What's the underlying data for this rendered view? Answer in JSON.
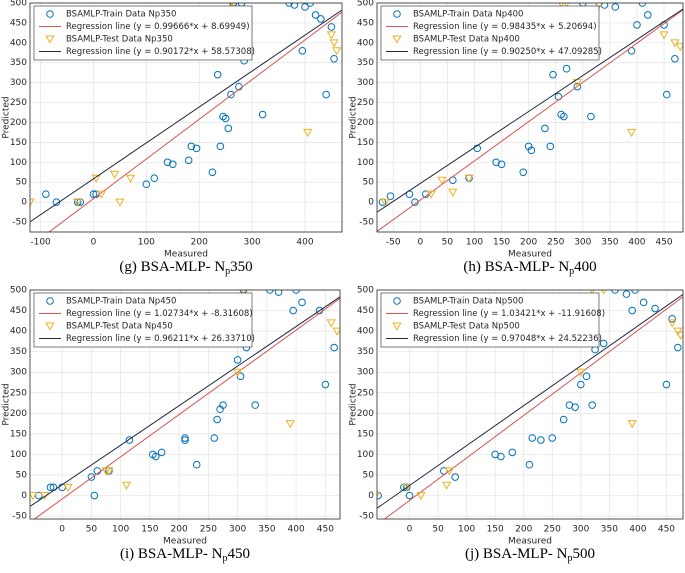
{
  "chart_data": [
    {
      "type": "scatter",
      "caption": [
        "(g) BSA-MLP- N",
        "p",
        "350"
      ],
      "xlabel": "Measured",
      "ylabel": "Predicted",
      "xlim": [
        -120,
        470
      ],
      "ylim": [
        -75,
        500
      ],
      "xticks": [
        -100,
        0,
        100,
        200,
        300,
        400
      ],
      "yticks": [
        -50,
        0,
        50,
        100,
        150,
        200,
        250,
        300,
        350,
        400,
        450,
        500
      ],
      "grid": true,
      "legend": "upper left",
      "series": [
        {
          "name": "BSAMLP-Train Data Np350",
          "color": "#0072bd",
          "marker": "circle",
          "x": [
            -90,
            -70,
            -30,
            -25,
            0,
            5,
            100,
            115,
            140,
            150,
            180,
            185,
            195,
            225,
            235,
            240,
            245,
            250,
            255,
            260,
            275,
            280,
            285,
            290,
            320,
            370,
            380,
            395,
            400,
            410,
            420,
            430,
            440,
            450,
            455,
            265
          ],
          "values": [
            20,
            0,
            0,
            0,
            20,
            20,
            45,
            60,
            100,
            95,
            105,
            140,
            135,
            75,
            320,
            140,
            215,
            210,
            185,
            270,
            290,
            500,
            355,
            370,
            220,
            500,
            495,
            380,
            490,
            500,
            470,
            460,
            270,
            440,
            360,
            500
          ]
        },
        {
          "name": "Regression line (y = 0.99666*x + 8.69949)",
          "color": "#d9534f",
          "marker": "line",
          "slope": 0.99666,
          "intercept": 8.69949
        },
        {
          "name": "BSAMLP-Test Data Np350",
          "color": "#edb120",
          "marker": "triangle",
          "x": [
            -120,
            -30,
            5,
            15,
            40,
            50,
            70,
            260,
            265,
            405,
            450,
            455,
            460
          ],
          "values": [
            0,
            0,
            60,
            20,
            70,
            0,
            60,
            500,
            500,
            175,
            420,
            400,
            380
          ]
        },
        {
          "name": "Regression line (y = 0.90172*x + 58.57308)",
          "color": "#1f2a44",
          "marker": "line",
          "slope": 0.90172,
          "intercept": 58.57308
        }
      ]
    },
    {
      "type": "scatter",
      "caption": [
        "(h) BSA-MLP- N",
        "p",
        "400"
      ],
      "xlabel": "Measured",
      "ylabel": "Predicted",
      "xlim": [
        -80,
        485
      ],
      "ylim": [
        -75,
        500
      ],
      "xticks": [
        -50,
        0,
        50,
        100,
        150,
        200,
        250,
        300,
        350,
        400,
        450
      ],
      "yticks": [
        -50,
        0,
        50,
        100,
        150,
        200,
        250,
        300,
        350,
        400,
        450,
        500
      ],
      "grid": true,
      "legend": "upper left",
      "series": [
        {
          "name": "BSAMLP-Train Data Np400",
          "color": "#0072bd",
          "marker": "circle",
          "x": [
            -70,
            -55,
            -20,
            -10,
            10,
            60,
            90,
            105,
            140,
            150,
            190,
            200,
            205,
            230,
            240,
            245,
            255,
            260,
            265,
            270,
            290,
            300,
            310,
            315,
            330,
            340,
            360,
            390,
            400,
            410,
            420,
            450,
            455,
            470
          ],
          "values": [
            0,
            15,
            20,
            0,
            20,
            55,
            60,
            135,
            100,
            95,
            75,
            140,
            130,
            185,
            140,
            320,
            265,
            220,
            215,
            335,
            290,
            500,
            370,
            215,
            500,
            495,
            490,
            380,
            445,
            500,
            470,
            445,
            270,
            360
          ]
        },
        {
          "name": "Regression line (y = 0.98435*x + 5.20694)",
          "color": "#d9534f",
          "marker": "line",
          "slope": 0.98435,
          "intercept": 5.20694
        },
        {
          "name": "BSAMLP-Test Data Np400",
          "color": "#edb120",
          "marker": "triangle",
          "x": [
            -65,
            20,
            40,
            60,
            90,
            260,
            270,
            290,
            330,
            390,
            450,
            470,
            480
          ],
          "values": [
            0,
            20,
            55,
            25,
            60,
            500,
            500,
            300,
            495,
            175,
            420,
            400,
            390
          ]
        },
        {
          "name": "Regression line (y = 0.90250*x + 47.09285)",
          "color": "#1f2a44",
          "marker": "line",
          "slope": 0.9025,
          "intercept": 47.09285
        }
      ]
    },
    {
      "type": "scatter",
      "caption": [
        "(i) BSA-MLP- N",
        "p",
        "450"
      ],
      "xlabel": "Measured",
      "ylabel": "Predicted",
      "xlim": [
        -55,
        475
      ],
      "ylim": [
        -57,
        500
      ],
      "xticks": [
        0,
        50,
        100,
        150,
        200,
        250,
        300,
        350,
        400,
        450
      ],
      "yticks": [
        -50,
        0,
        50,
        100,
        150,
        200,
        250,
        300,
        350,
        400,
        450,
        500
      ],
      "grid": true,
      "legend": "upper left",
      "series": [
        {
          "name": "BSAMLP-Train Data Np450",
          "color": "#0072bd",
          "marker": "circle",
          "x": [
            -40,
            -20,
            -15,
            0,
            50,
            55,
            60,
            80,
            115,
            155,
            160,
            170,
            210,
            210,
            230,
            260,
            265,
            270,
            275,
            300,
            305,
            310,
            315,
            330,
            355,
            370,
            395,
            400,
            410,
            440,
            450,
            465
          ],
          "values": [
            0,
            20,
            20,
            20,
            45,
            0,
            60,
            60,
            135,
            100,
            95,
            105,
            140,
            135,
            75,
            140,
            185,
            210,
            220,
            330,
            290,
            500,
            360,
            220,
            500,
            495,
            450,
            500,
            470,
            450,
            270,
            360
          ]
        },
        {
          "name": "Regression line (y = 1.02734*x + -8.31608)",
          "color": "#d9534f",
          "marker": "line",
          "slope": 1.02734,
          "intercept": -8.31608
        },
        {
          "name": "BSAMLP-Test Data Np450",
          "color": "#edb120",
          "marker": "triangle",
          "x": [
            -50,
            -30,
            10,
            75,
            80,
            110,
            300,
            310,
            390,
            460,
            470
          ],
          "values": [
            0,
            0,
            20,
            60,
            60,
            25,
            300,
            500,
            175,
            420,
            400
          ]
        },
        {
          "name": "Regression line (y = 0.96211*x + 26.33710)",
          "color": "#1f2a44",
          "marker": "line",
          "slope": 0.96211,
          "intercept": 26.3371
        }
      ]
    },
    {
      "type": "scatter",
      "caption": [
        "(j) BSA-MLP- N",
        "p",
        "500"
      ],
      "xlabel": "Measured",
      "ylabel": "Predicted",
      "xlim": [
        -57,
        479
      ],
      "ylim": [
        -57,
        500
      ],
      "xticks": [
        0,
        50,
        100,
        150,
        200,
        250,
        300,
        350,
        400,
        450
      ],
      "yticks": [
        -50,
        0,
        50,
        100,
        150,
        200,
        250,
        300,
        350,
        400,
        450,
        500
      ],
      "grid": true,
      "legend": "upper left",
      "series": [
        {
          "name": "BSAMLP-Train Data Np500",
          "color": "#0072bd",
          "marker": "circle",
          "x": [
            -55,
            -10,
            -5,
            0,
            60,
            80,
            150,
            160,
            180,
            210,
            215,
            230,
            250,
            270,
            280,
            290,
            300,
            310,
            320,
            325,
            340,
            360,
            380,
            390,
            395,
            410,
            430,
            450,
            460,
            470
          ],
          "values": [
            0,
            20,
            20,
            0,
            60,
            45,
            100,
            95,
            105,
            75,
            140,
            135,
            140,
            185,
            220,
            215,
            270,
            290,
            220,
            355,
            370,
            500,
            490,
            450,
            500,
            470,
            455,
            270,
            430,
            360
          ]
        },
        {
          "name": "Regression line (y = 1.03421*x + -11.91608)",
          "color": "#d9534f",
          "marker": "line",
          "slope": 1.03421,
          "intercept": -11.91608
        },
        {
          "name": "BSAMLP-Test Data Np500",
          "color": "#edb120",
          "marker": "triangle",
          "x": [
            -60,
            -5,
            20,
            65,
            70,
            300,
            320,
            340,
            390,
            460,
            470,
            475
          ],
          "values": [
            0,
            20,
            0,
            25,
            60,
            300,
            500,
            500,
            175,
            420,
            400,
            390
          ]
        },
        {
          "name": "Regression line (y = 0.97048*x + 24.52236)",
          "color": "#1f2a44",
          "marker": "line",
          "slope": 0.97048,
          "intercept": 24.52236
        }
      ]
    }
  ]
}
